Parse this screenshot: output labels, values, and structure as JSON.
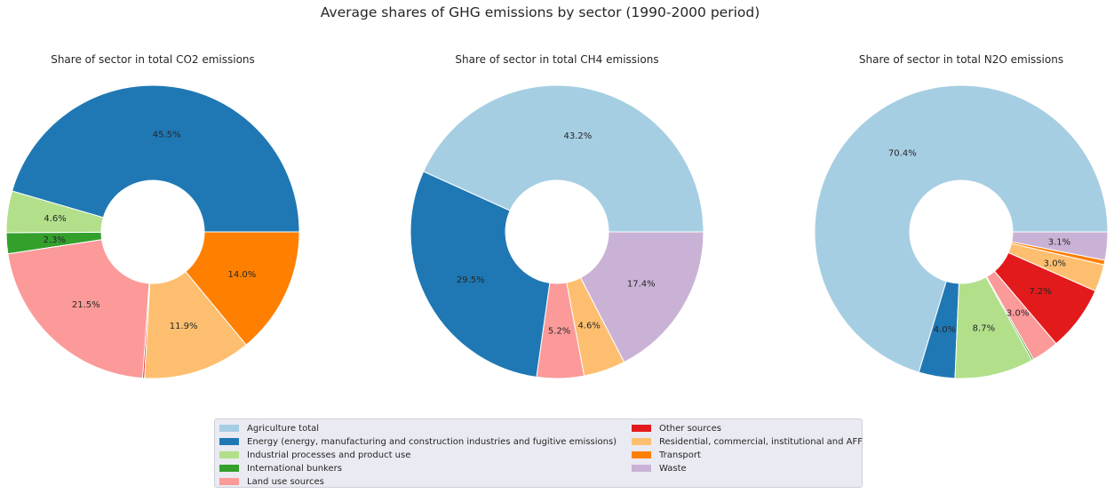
{
  "title": "Average shares of GHG emissions by sector (1990-2000 period)",
  "colors": {
    "Agriculture total": "#a6cee3",
    "Energy (energy, manufacturing and construction industries and fugitive emissions)": "#1f78b4",
    "Industrial processes and product use": "#b2df8a",
    "International bunkers": "#33a02c",
    "Land use sources": "#fb9a99",
    "Other sources": "#e31a1c",
    "Residential, commercial, institutional and AFF": "#fdbf6f",
    "Transport": "#ff7f00",
    "Waste": "#cab2d6"
  },
  "legend": {
    "columns": [
      [
        "Agriculture total",
        "Energy (energy, manufacturing and construction industries and fugitive emissions)",
        "Industrial processes and product use",
        "International bunkers",
        "Land use sources"
      ],
      [
        "Other sources",
        "Residential, commercial, institutional and AFF",
        "Transport",
        "Waste"
      ]
    ]
  },
  "chart_data": [
    {
      "type": "pie",
      "title": "Share of sector in total CO2 emissions",
      "labels": [
        "Agriculture total",
        "Energy (energy, manufacturing and construction industries and fugitive emissions)",
        "Industrial processes and product use",
        "International bunkers",
        "Land use sources",
        "Other sources",
        "Residential, commercial, institutional and AFF",
        "Transport"
      ],
      "values": [
        0.0,
        45.5,
        4.6,
        2.3,
        21.5,
        0.2,
        11.9,
        14.0
      ],
      "percent_labels": [
        "",
        "45.5%",
        "4.6%",
        "2.3%",
        "21.5%",
        "",
        "11.9%",
        "14.0%"
      ]
    },
    {
      "type": "pie",
      "title": "Share of sector in total CH4 emissions",
      "labels": [
        "Agriculture total",
        "Energy (energy, manufacturing and construction industries and fugitive emissions)",
        "Land use sources",
        "Residential, commercial, institutional and AFF",
        "Waste"
      ],
      "values": [
        43.2,
        29.5,
        5.2,
        4.6,
        17.4
      ],
      "percent_labels": [
        "43.2%",
        "29.5%",
        "5.2%",
        "4.6%",
        "17.4%"
      ]
    },
    {
      "type": "pie",
      "title": "Share of sector in total N2O emissions",
      "labels": [
        "Agriculture total",
        "Energy (energy, manufacturing and construction industries and fugitive emissions)",
        "Industrial processes and product use",
        "International bunkers",
        "Land use sources",
        "Other sources",
        "Residential, commercial, institutional and AFF",
        "Transport",
        "Waste"
      ],
      "values": [
        70.4,
        4.0,
        8.7,
        0.2,
        3.0,
        7.2,
        3.0,
        0.5,
        3.1
      ],
      "percent_labels": [
        "70.4%",
        "4.0%",
        "8.7%",
        "",
        "3.0%",
        "7.2%",
        "3.0%",
        "",
        "3.1%"
      ]
    }
  ]
}
